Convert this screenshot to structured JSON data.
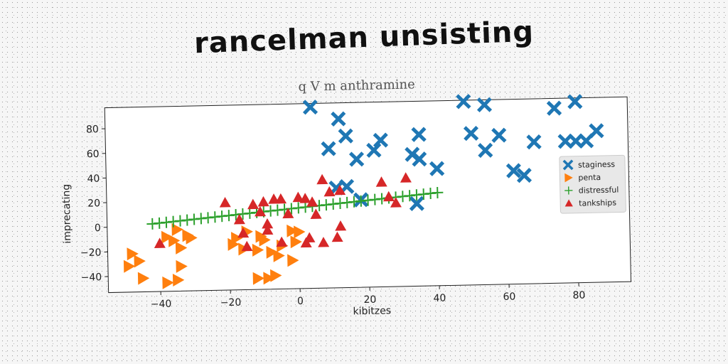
{
  "chart_data": {
    "type": "scatter",
    "title": "rancelman unsisting",
    "subtitle": "q V m anthramine",
    "xlabel": "kibitzes",
    "ylabel": "imprecating",
    "xlim": [
      -55,
      95
    ],
    "ylim": [
      -53,
      97
    ],
    "xticks": [
      -40,
      -20,
      0,
      20,
      40,
      60,
      80
    ],
    "yticks": [
      -40,
      -20,
      0,
      20,
      40,
      60,
      80
    ],
    "legend_position": "center-right",
    "grid": false,
    "series": [
      {
        "name": "staginess",
        "marker": "x-thick",
        "color": "#1f77b4",
        "points": [
          [
            4,
            94
          ],
          [
            12,
            84
          ],
          [
            14,
            70
          ],
          [
            9,
            60
          ],
          [
            17,
            51
          ],
          [
            22,
            58
          ],
          [
            24,
            66
          ],
          [
            11,
            28
          ],
          [
            14,
            29
          ],
          [
            18,
            18
          ],
          [
            33,
            54
          ],
          [
            35,
            70
          ],
          [
            35,
            50
          ],
          [
            40,
            42
          ],
          [
            34,
            14
          ],
          [
            48,
            96
          ],
          [
            50,
            70
          ],
          [
            54,
            93
          ],
          [
            54,
            56
          ],
          [
            58,
            68
          ],
          [
            62,
            39
          ],
          [
            65,
            35
          ],
          [
            68,
            62
          ],
          [
            74,
            89
          ],
          [
            77,
            62
          ],
          [
            80,
            62
          ],
          [
            80,
            94
          ],
          [
            83,
            62
          ],
          [
            86,
            70
          ]
        ]
      },
      {
        "name": "penta",
        "marker": "triangle-right",
        "color": "#ff7f0e",
        "points": [
          [
            -48,
            -22
          ],
          [
            -46,
            -28
          ],
          [
            -49,
            -32
          ],
          [
            -45,
            -42
          ],
          [
            -38,
            -9
          ],
          [
            -35,
            -3
          ],
          [
            -36,
            -12
          ],
          [
            -34,
            -18
          ],
          [
            -32,
            -8
          ],
          [
            -34,
            -33
          ],
          [
            -31,
            -10
          ],
          [
            -38,
            -46
          ],
          [
            -35,
            -44
          ],
          [
            -19,
            -16
          ],
          [
            -18,
            -11
          ],
          [
            -16,
            -20
          ],
          [
            -12,
            -21
          ],
          [
            -10,
            -13
          ],
          [
            -8,
            -23
          ],
          [
            -5,
            -18
          ],
          [
            -2,
            -6
          ],
          [
            -6,
            -26
          ],
          [
            0,
            -7
          ],
          [
            -1,
            -15
          ],
          [
            -2,
            -30
          ],
          [
            -12,
            -44
          ],
          [
            -9,
            -44
          ],
          [
            -7,
            -42
          ],
          [
            -15,
            -6
          ],
          [
            -11,
            -10
          ]
        ]
      },
      {
        "name": "distressful",
        "marker": "plus",
        "color": "#2ca02c",
        "points": [
          [
            -42,
            2
          ],
          [
            -40,
            2.5
          ],
          [
            -38,
            3
          ],
          [
            -36,
            3.5
          ],
          [
            -34,
            4
          ],
          [
            -32,
            4.5
          ],
          [
            -30,
            5
          ],
          [
            -28,
            5.5
          ],
          [
            -26,
            6
          ],
          [
            -24,
            6.5
          ],
          [
            -22,
            7
          ],
          [
            -20,
            7.5
          ],
          [
            -18,
            8
          ],
          [
            -16,
            8.5
          ],
          [
            -14,
            9
          ],
          [
            -12,
            9.5
          ],
          [
            -10,
            10
          ],
          [
            -8,
            10.5
          ],
          [
            -6,
            11
          ],
          [
            -4,
            11.5
          ],
          [
            -2,
            12
          ],
          [
            0,
            12.5
          ],
          [
            2,
            13
          ],
          [
            4,
            13.5
          ],
          [
            6,
            14
          ],
          [
            8,
            14.5
          ],
          [
            10,
            15
          ],
          [
            12,
            15.5
          ],
          [
            14,
            16
          ],
          [
            16,
            16.5
          ],
          [
            18,
            17
          ],
          [
            20,
            17.5
          ],
          [
            22,
            18
          ],
          [
            24,
            18.5
          ],
          [
            26,
            19
          ],
          [
            28,
            19.5
          ],
          [
            30,
            20
          ],
          [
            32,
            20.5
          ],
          [
            34,
            21
          ],
          [
            36,
            21.5
          ],
          [
            38,
            22
          ],
          [
            40,
            22.5
          ]
        ]
      },
      {
        "name": "tankships",
        "marker": "triangle-up",
        "color": "#d62728",
        "points": [
          [
            -40,
            -14
          ],
          [
            -21,
            18
          ],
          [
            -17,
            4
          ],
          [
            -16,
            -7
          ],
          [
            -15,
            -18
          ],
          [
            -13,
            16
          ],
          [
            -11,
            10
          ],
          [
            -10,
            18
          ],
          [
            -9,
            0
          ],
          [
            -9,
            -5
          ],
          [
            -7,
            20
          ],
          [
            -5,
            20
          ],
          [
            -3,
            8
          ],
          [
            0,
            21
          ],
          [
            2,
            20
          ],
          [
            4,
            17
          ],
          [
            5,
            7
          ],
          [
            7,
            35
          ],
          [
            9,
            25
          ],
          [
            12,
            26
          ],
          [
            -5,
            -15
          ],
          [
            2,
            -16
          ],
          [
            3,
            -12
          ],
          [
            7,
            -16
          ],
          [
            11,
            -12
          ],
          [
            12,
            -3
          ],
          [
            24,
            32
          ],
          [
            26,
            20
          ],
          [
            28,
            15
          ],
          [
            31,
            35
          ]
        ]
      }
    ]
  }
}
